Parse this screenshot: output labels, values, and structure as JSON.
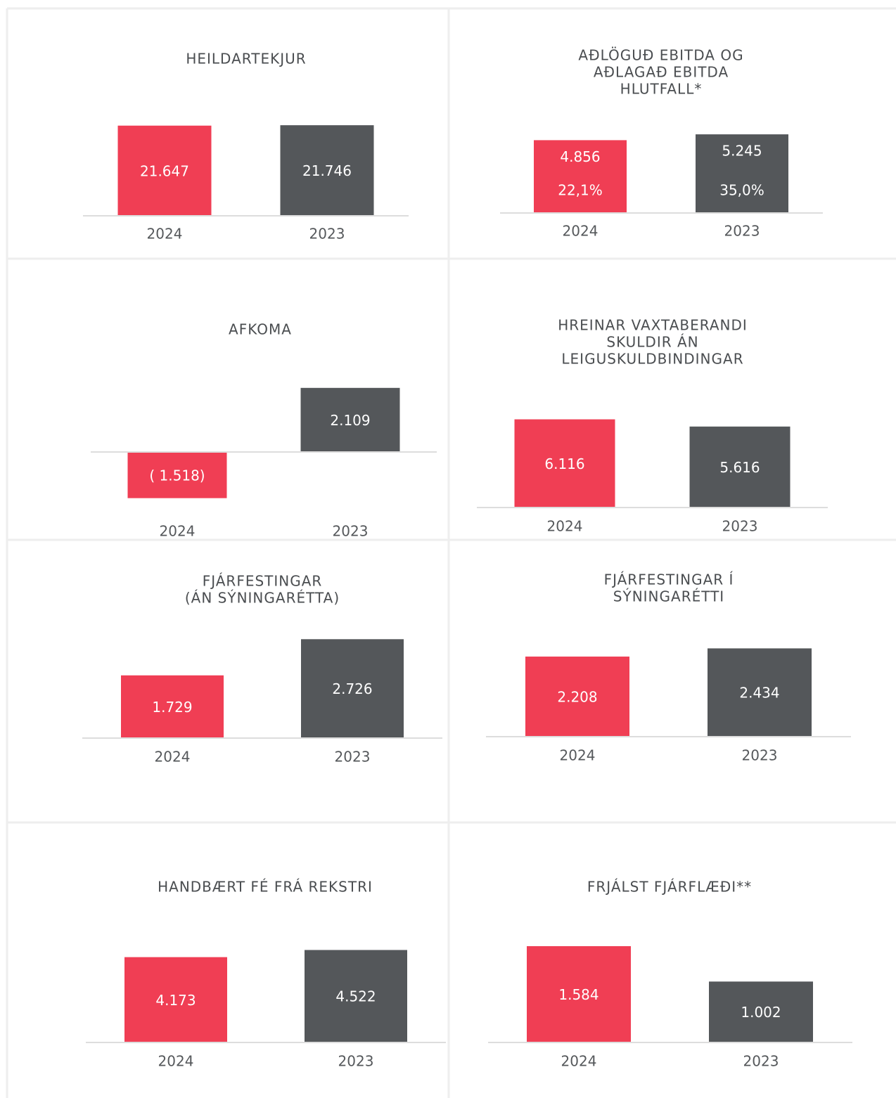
{
  "chart_data": [
    {
      "type": "bar",
      "title": [
        "HEILDARTEKJUR"
      ],
      "categories": [
        "2024",
        "2023"
      ],
      "values": [
        21647,
        21746
      ],
      "value_labels": [
        "21.647",
        "21.746"
      ],
      "colors": [
        "#f03e54",
        "#54575a"
      ],
      "ylim": [
        0,
        27000
      ]
    },
    {
      "type": "bar",
      "title": [
        "AÐLÖGUÐ EBITDA OG",
        "AÐLAGAÐ EBITDA",
        "HLUTFALL*"
      ],
      "categories": [
        "2024",
        "2023"
      ],
      "values": [
        4856,
        5245
      ],
      "value_labels": [
        "4.856",
        "5.245"
      ],
      "ratio_values": [
        22.1,
        35.0
      ],
      "ratio_labels": [
        "22,1%",
        "35,0%"
      ],
      "colors": [
        "#f03e54",
        "#54575a"
      ],
      "ylim": [
        0,
        7500
      ]
    },
    {
      "type": "bar",
      "title": [
        "AFKOMA"
      ],
      "categories": [
        "2024",
        "2023"
      ],
      "values": [
        -1518,
        2109
      ],
      "value_labels": [
        "( 1.518)",
        "2.109"
      ],
      "colors": [
        "#f03e54",
        "#54575a"
      ],
      "ylim": [
        -1850,
        3700
      ]
    },
    {
      "type": "bar",
      "title": [
        "HREINAR VAXTABERANDI",
        "SKULDIR ÁN",
        "LEIGUSKULDBINDINGAR"
      ],
      "categories": [
        "2024",
        "2023"
      ],
      "values": [
        6116,
        5616
      ],
      "value_labels": [
        "6.116",
        "5.616"
      ],
      "colors": [
        "#f03e54",
        "#54575a"
      ],
      "ylim": [
        0,
        7800
      ]
    },
    {
      "type": "bar",
      "title": [
        "FJÁRFESTINGAR",
        "(ÁN SÝNINGARÉTTA)"
      ],
      "categories": [
        "2024",
        "2023"
      ],
      "values": [
        1729,
        2726
      ],
      "value_labels": [
        "1.729",
        "2.726"
      ],
      "colors": [
        "#f03e54",
        "#54575a"
      ],
      "ylim": [
        0,
        3100
      ]
    },
    {
      "type": "bar",
      "title": [
        "FJÁRFESTINGAR Í",
        "SÝNINGARÉTTI"
      ],
      "categories": [
        "2024",
        "2023"
      ],
      "values": [
        2208,
        2434
      ],
      "value_labels": [
        "2.208",
        "2.434"
      ],
      "colors": [
        "#f03e54",
        "#54575a"
      ],
      "ylim": [
        0,
        3100
      ]
    },
    {
      "type": "bar",
      "title": [
        "HANDBÆRT FÉ FRÁ REKSTRI"
      ],
      "categories": [
        "2024",
        "2023"
      ],
      "values": [
        4173,
        4522
      ],
      "value_labels": [
        "4.173",
        "4.522"
      ],
      "colors": [
        "#f03e54",
        "#54575a"
      ],
      "ylim": [
        0,
        5500
      ]
    },
    {
      "type": "bar",
      "title": [
        "FRJÁLST FJÁRFLÆÐI**"
      ],
      "categories": [
        "2024",
        "2023"
      ],
      "values": [
        1584,
        1002
      ],
      "value_labels": [
        "1.584",
        "1.002"
      ],
      "colors": [
        "#f03e54",
        "#54575a"
      ],
      "ylim": [
        0,
        1850
      ]
    }
  ]
}
